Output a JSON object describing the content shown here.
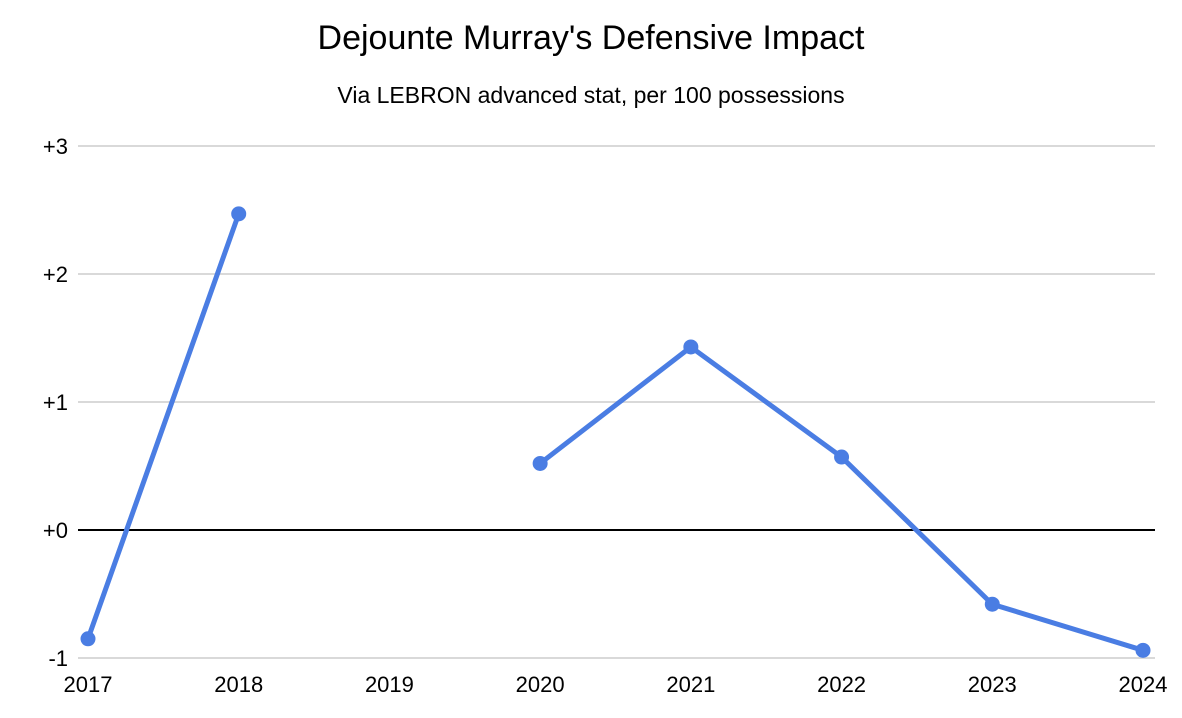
{
  "header": {
    "title": "Dejounte Murray's Defensive Impact",
    "subtitle": "Via LEBRON advanced stat, per 100 possessions"
  },
  "chart_data": {
    "type": "line",
    "title": "Dejounte Murray's Defensive Impact",
    "subtitle": "Via LEBRON advanced stat, per 100 possessions",
    "categories": [
      "2017",
      "2018",
      "2019",
      "2020",
      "2021",
      "2022",
      "2023",
      "2024"
    ],
    "values": [
      -0.85,
      2.47,
      null,
      0.52,
      1.43,
      0.57,
      -0.58,
      -0.94
    ],
    "missing_years": [
      "2019"
    ],
    "xlabel": "",
    "ylabel": "",
    "ylim": [
      -1,
      3
    ],
    "yticks": [
      {
        "label": "+3",
        "value": 3
      },
      {
        "label": "+2",
        "value": 2
      },
      {
        "label": "+1",
        "value": 1
      },
      {
        "label": "+0",
        "value": 0
      },
      {
        "label": "-1",
        "value": -1
      }
    ],
    "grid": true,
    "zero_axis_highlighted": true,
    "legend": false,
    "marker": "circle",
    "colors": {
      "line": "#4a7de3",
      "grid": "#d9d9d9",
      "zero_axis": "#000000",
      "text": "#000000",
      "background": "#ffffff"
    }
  }
}
